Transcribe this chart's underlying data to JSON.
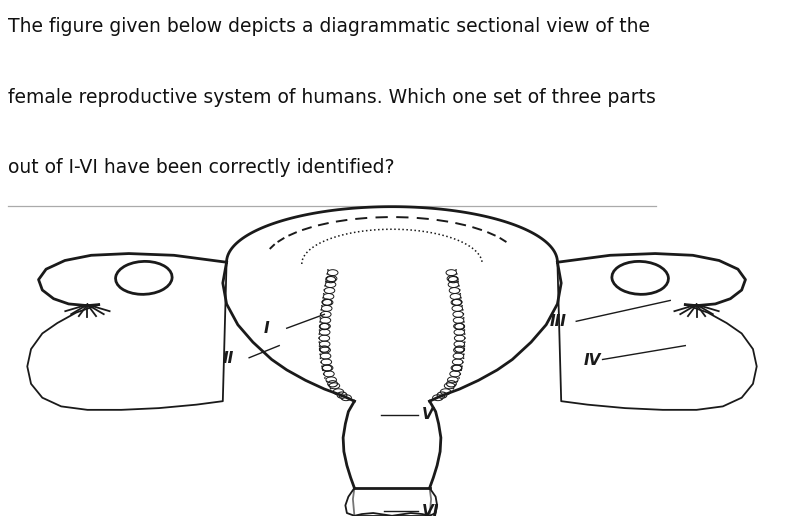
{
  "title_line1": "The figure given below depicts a diagrammatic sectional view of the",
  "title_line2": "female reproductive system of humans. Which one set of three parts",
  "title_line3": "out of I-VI have been correctly identified?",
  "title_fontsize": 13.5,
  "title_color": "#111111",
  "bg_color": "#ffffff",
  "diagram_bg": "#d8d8d8",
  "line_color": "#1a1a1a",
  "label_fontsize": 11,
  "sep_line_color": "#aaaaaa"
}
